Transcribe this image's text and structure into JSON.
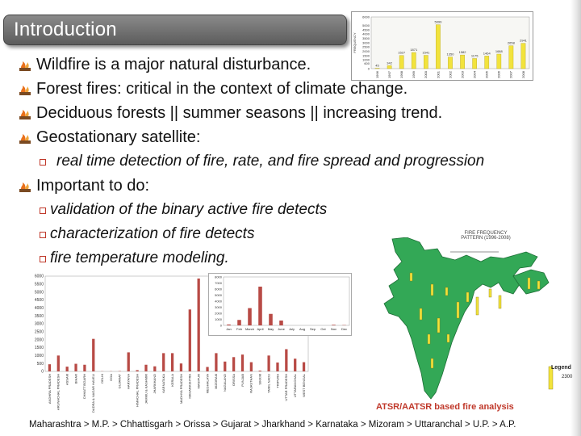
{
  "slide": {
    "title": "Introduction",
    "bullets": [
      "Wildfire is a major natural disturbance.",
      "Forest fires: critical in the context of climate change.",
      "Deciduous forests || summer seasons || increasing trend.",
      "Geostationary satellite:",
      "Important to do:"
    ],
    "sub_bullets_geo": [
      "real time detection of fire, rate, and fire spread and progression"
    ],
    "sub_bullets_todo": [
      "validation of the binary active fire detects",
      "characterization of fire detects",
      "fire temperature modeling."
    ],
    "footer": "Maharashtra > M.P. > Chhattisgarh > Orissa > Gujarat > Jharkhand > Karnataka > Mizoram > Uttaranchal > U.P. > A.P.",
    "map_caption": "ATSR/AATSR based fire analysis",
    "map_title": "FIRE FREQUENCY PATTERN (1996-2008)",
    "map_legend": {
      "label": "Legend",
      "value": "2300"
    }
  },
  "colors": {
    "title_bg": "#6e6e6e",
    "bar_yellow": "#f2e33c",
    "bar_red": "#b84a45",
    "map_green": "#33a856",
    "caption_red": "#c0392b"
  },
  "chart_data": [
    {
      "type": "bar",
      "title": "",
      "ylabel": "FREQUENCY",
      "categories": [
        "1996",
        "1997",
        "1998",
        "1999",
        "2000",
        "2001",
        "2002",
        "2003",
        "2004",
        "2005",
        "2006",
        "2007",
        "2008"
      ],
      "values": [
        45,
        342,
        1527,
        1871,
        1541,
        5099,
        1350,
        1582,
        1175,
        1464,
        1688,
        2658,
        2941
      ],
      "value_labels": [
        "45",
        "342",
        "1527",
        "1871",
        "1541",
        "5099",
        "1350",
        "1582",
        "1175",
        "1464",
        "1688",
        "2658",
        "2941"
      ],
      "y_ticks": [
        "0",
        "600",
        "1000",
        "1500",
        "2000",
        "2500",
        "3000",
        "3500",
        "4000",
        "4500",
        "5000",
        "6000"
      ],
      "ylim": [
        0,
        6000
      ],
      "note": "Per-bar labels are small; 450 is also printed near the third bar."
    },
    {
      "type": "bar",
      "title": "",
      "categories": [
        "ANDHRA PRADESH",
        "ARUNACHAL PRADESH",
        "ASSAM",
        "BIHAR",
        "CHHATTISGARH",
        "DADRA & NAGAR HAVELI",
        "DELHI",
        "GOA",
        "GUJARAT",
        "HARYANA",
        "HIMACHAL PRADESH",
        "JAMMU & KASHMIR",
        "JHARKHAND",
        "KARNATAKA",
        "KERALA",
        "MADHYA PRADESH",
        "MAHARASHTRA",
        "MANIPUR",
        "MEGHALAYA",
        "MIZORAM",
        "NAGALAND",
        "ORISSA",
        "PUNJAB",
        "RAJASTHAN",
        "SIKKIM",
        "TAMIL NADU",
        "TRIPURA",
        "UTTAR PRADESH",
        "UTTARANCHAL",
        "WEST BENGAL"
      ],
      "values": [
        450,
        1000,
        300,
        480,
        420,
        2050,
        10,
        10,
        20,
        1200,
        80,
        420,
        320,
        1150,
        1150,
        500,
        3900,
        5850,
        280,
        1150,
        620,
        900,
        1060,
        580,
        50,
        1000,
        560,
        1400,
        800,
        580
      ],
      "y_ticks": [
        "0",
        "500",
        "1000",
        "1500",
        "2000",
        "2500",
        "3000",
        "3500",
        "4000",
        "4500",
        "5000",
        "5500",
        "6000"
      ],
      "ylim": [
        0,
        6000
      ]
    },
    {
      "type": "bar",
      "title": "",
      "categories": [
        "Jan",
        "Feb",
        "March",
        "April",
        "May",
        "June",
        "July",
        "Aug",
        "Sep",
        "Oct",
        "Nov",
        "Dec"
      ],
      "values": [
        150,
        900,
        2850,
        6400,
        1900,
        800,
        0,
        0,
        0,
        0,
        100,
        50
      ],
      "y_ticks": [
        "0",
        "1000",
        "2000",
        "3000",
        "4000",
        "5000",
        "6000",
        "7000",
        "8000"
      ],
      "ylim": [
        0,
        8000
      ]
    }
  ]
}
